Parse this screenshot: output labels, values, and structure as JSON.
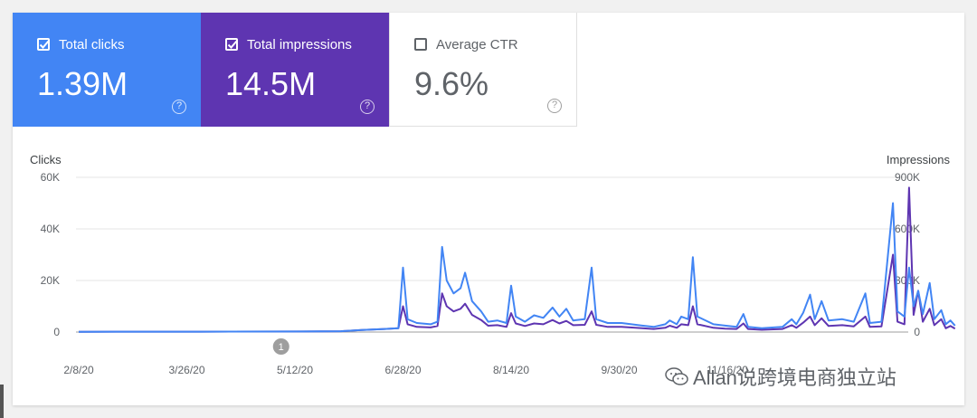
{
  "metrics": {
    "clicks": {
      "label": "Total clicks",
      "value": "1.39M",
      "checked": true,
      "color": "#4285f4"
    },
    "impressions": {
      "label": "Total impressions",
      "value": "14.5M",
      "checked": true,
      "color": "#5e35b1"
    },
    "ctr": {
      "label": "Average CTR",
      "value": "9.6%",
      "checked": false
    },
    "help_glyph": "?"
  },
  "annotation_marker": "1",
  "watermark": "Allan说跨境电商独立站",
  "chart_data": {
    "type": "line",
    "ylabel_left": "Clicks",
    "ylabel_right": "Impressions",
    "y_ticks_left": [
      "60K",
      "40K",
      "20K",
      "0"
    ],
    "y_ticks_right": [
      "900K",
      "600K",
      "300K",
      "0"
    ],
    "ylim_left": [
      0,
      60000
    ],
    "ylim_right": [
      0,
      900000
    ],
    "x_ticks": [
      "2/8/20",
      "3/26/20",
      "5/12/20",
      "6/28/20",
      "8/14/20",
      "9/30/20",
      "11/16/20"
    ],
    "x_range": [
      "2/8/20",
      "1/1/21"
    ],
    "grid": true,
    "series": [
      {
        "name": "Clicks",
        "axis": "left",
        "color": "#4285f4",
        "points": [
          [
            "2/8/20",
            100
          ],
          [
            "4/1/20",
            150
          ],
          [
            "5/15/20",
            200
          ],
          [
            "6/1/20",
            300
          ],
          [
            "6/10/20",
            800
          ],
          [
            "6/20/20",
            1200
          ],
          [
            "6/26/20",
            1500
          ],
          [
            "6/28/20",
            25000
          ],
          [
            "6/30/20",
            5000
          ],
          [
            "7/4/20",
            3500
          ],
          [
            "7/10/20",
            3000
          ],
          [
            "7/13/20",
            4000
          ],
          [
            "7/15/20",
            33000
          ],
          [
            "7/17/20",
            20000
          ],
          [
            "7/20/20",
            15000
          ],
          [
            "7/23/20",
            17000
          ],
          [
            "7/25/20",
            23000
          ],
          [
            "7/28/20",
            12000
          ],
          [
            "8/1/20",
            8000
          ],
          [
            "8/4/20",
            4000
          ],
          [
            "8/8/20",
            4500
          ],
          [
            "8/12/20",
            3500
          ],
          [
            "8/14/20",
            18000
          ],
          [
            "8/16/20",
            6000
          ],
          [
            "8/20/20",
            4000
          ],
          [
            "8/24/20",
            6500
          ],
          [
            "8/28/20",
            5500
          ],
          [
            "9/1/20",
            9500
          ],
          [
            "9/4/20",
            6000
          ],
          [
            "9/7/20",
            9000
          ],
          [
            "9/10/20",
            4500
          ],
          [
            "9/15/20",
            5000
          ],
          [
            "9/18/20",
            25000
          ],
          [
            "9/20/20",
            5000
          ],
          [
            "9/25/20",
            3500
          ],
          [
            "10/1/20",
            3500
          ],
          [
            "10/10/20",
            2500
          ],
          [
            "10/15/20",
            2000
          ],
          [
            "10/20/20",
            3000
          ],
          [
            "10/22/20",
            4500
          ],
          [
            "10/25/20",
            3000
          ],
          [
            "10/27/20",
            6000
          ],
          [
            "10/30/20",
            5000
          ],
          [
            "11/1/20",
            29000
          ],
          [
            "11/3/20",
            6000
          ],
          [
            "11/10/20",
            3000
          ],
          [
            "11/15/20",
            2500
          ],
          [
            "11/20/20",
            2000
          ],
          [
            "11/23/20",
            7000
          ],
          [
            "11/25/20",
            2000
          ],
          [
            "12/1/20",
            1500
          ],
          [
            "12/10/20",
            2000
          ],
          [
            "12/14/20",
            5000
          ],
          [
            "12/16/20",
            3000
          ],
          [
            "12/19/20",
            7500
          ],
          [
            "12/22/20",
            14500
          ],
          [
            "12/24/20",
            5000
          ],
          [
            "12/27/20",
            12000
          ],
          [
            "12/30/20",
            4500
          ],
          [
            "1/5/21",
            5000
          ],
          [
            "1/10/21",
            4000
          ],
          [
            "1/15/21",
            15000
          ],
          [
            "1/17/21",
            3500
          ],
          [
            "1/22/21",
            4000
          ],
          [
            "1/27/21",
            50000
          ],
          [
            "1/29/21",
            8000
          ],
          [
            "2/1/21",
            6000
          ],
          [
            "2/3/21",
            25000
          ],
          [
            "2/5/21",
            10000
          ],
          [
            "2/7/21",
            16000
          ],
          [
            "2/9/21",
            7000
          ],
          [
            "2/12/21",
            19000
          ],
          [
            "2/14/21",
            5000
          ],
          [
            "2/17/21",
            8500
          ],
          [
            "2/19/21",
            3000
          ],
          [
            "2/21/21",
            4500
          ],
          [
            "2/23/21",
            2500
          ]
        ]
      },
      {
        "name": "Impressions",
        "axis": "right",
        "color": "#5e35b1",
        "points": [
          [
            "2/8/20",
            1500
          ],
          [
            "4/1/20",
            2000
          ],
          [
            "5/15/20",
            3000
          ],
          [
            "6/1/20",
            4500
          ],
          [
            "6/10/20",
            12000
          ],
          [
            "6/20/20",
            18000
          ],
          [
            "6/26/20",
            22000
          ],
          [
            "6/28/20",
            150000
          ],
          [
            "6/30/20",
            45000
          ],
          [
            "7/4/20",
            30000
          ],
          [
            "7/10/20",
            27000
          ],
          [
            "7/13/20",
            35000
          ],
          [
            "7/15/20",
            225000
          ],
          [
            "7/17/20",
            150000
          ],
          [
            "7/20/20",
            120000
          ],
          [
            "7/23/20",
            135000
          ],
          [
            "7/25/20",
            165000
          ],
          [
            "7/28/20",
            100000
          ],
          [
            "8/1/20",
            70000
          ],
          [
            "8/4/20",
            37000
          ],
          [
            "8/8/20",
            40000
          ],
          [
            "8/12/20",
            30000
          ],
          [
            "8/14/20",
            110000
          ],
          [
            "8/16/20",
            50000
          ],
          [
            "8/20/20",
            35000
          ],
          [
            "8/24/20",
            50000
          ],
          [
            "8/28/20",
            45000
          ],
          [
            "9/1/20",
            70000
          ],
          [
            "9/4/20",
            50000
          ],
          [
            "9/7/20",
            65000
          ],
          [
            "9/10/20",
            40000
          ],
          [
            "9/15/20",
            42000
          ],
          [
            "9/18/20",
            120000
          ],
          [
            "9/20/20",
            42000
          ],
          [
            "9/25/20",
            30000
          ],
          [
            "10/1/20",
            30000
          ],
          [
            "10/10/20",
            22000
          ],
          [
            "10/15/20",
            18000
          ],
          [
            "10/20/20",
            25000
          ],
          [
            "10/22/20",
            37000
          ],
          [
            "10/25/20",
            25000
          ],
          [
            "10/27/20",
            45000
          ],
          [
            "10/30/20",
            40000
          ],
          [
            "11/1/20",
            150000
          ],
          [
            "11/3/20",
            45000
          ],
          [
            "11/10/20",
            25000
          ],
          [
            "11/15/20",
            20000
          ],
          [
            "11/20/20",
            18000
          ],
          [
            "11/23/20",
            50000
          ],
          [
            "11/25/20",
            18000
          ],
          [
            "12/1/20",
            13000
          ],
          [
            "12/10/20",
            18000
          ],
          [
            "12/14/20",
            40000
          ],
          [
            "12/16/20",
            25000
          ],
          [
            "12/19/20",
            55000
          ],
          [
            "12/22/20",
            90000
          ],
          [
            "12/24/20",
            40000
          ],
          [
            "12/27/20",
            80000
          ],
          [
            "12/30/20",
            35000
          ],
          [
            "1/5/21",
            40000
          ],
          [
            "1/10/21",
            33000
          ],
          [
            "1/15/21",
            90000
          ],
          [
            "1/17/21",
            30000
          ],
          [
            "1/22/21",
            33000
          ],
          [
            "1/27/21",
            450000
          ],
          [
            "1/29/21",
            60000
          ],
          [
            "2/1/21",
            45000
          ],
          [
            "2/3/21",
            840000
          ],
          [
            "2/5/21",
            100000
          ],
          [
            "2/7/21",
            240000
          ],
          [
            "2/9/21",
            60000
          ],
          [
            "2/12/21",
            135000
          ],
          [
            "2/14/21",
            40000
          ],
          [
            "2/17/21",
            75000
          ],
          [
            "2/19/21",
            22000
          ],
          [
            "2/21/21",
            35000
          ],
          [
            "2/23/21",
            20000
          ]
        ]
      }
    ]
  }
}
